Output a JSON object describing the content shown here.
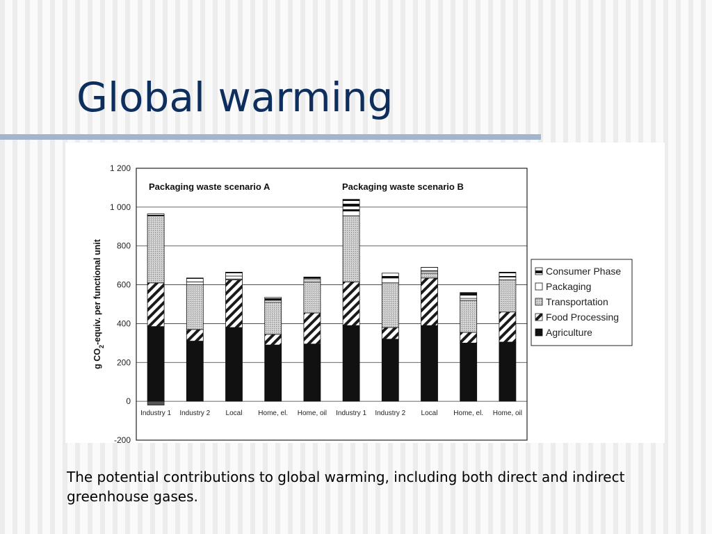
{
  "slide": {
    "title": "Global warming",
    "caption": "The potential contributions to global warming, including both direct and indirect greenhouse gases."
  },
  "chart_data": {
    "type": "bar",
    "stacked": true,
    "ylabel": "g CO2-equiv. per functional unit",
    "ylabel_parts": [
      "g CO",
      "2",
      "-equiv. per functional unit"
    ],
    "ylim": [
      -200,
      1200
    ],
    "yticks": [
      -200,
      0,
      200,
      400,
      600,
      800,
      1000,
      1200
    ],
    "ytick_labels": [
      "-200",
      "0",
      "200",
      "400",
      "600",
      "800",
      "1 000",
      "1 200"
    ],
    "grid": true,
    "legend_position": "right",
    "groups": [
      {
        "label": "Packaging waste scenario A",
        "categories": [
          0,
          1,
          2,
          3,
          4
        ]
      },
      {
        "label": "Packaging waste scenario B",
        "categories": [
          5,
          6,
          7,
          8,
          9
        ]
      }
    ],
    "categories": [
      "Industry 1",
      "Industry 2",
      "Local",
      "Home, el.",
      "Home, oil",
      "Industry 1",
      "Industry 2",
      "Local",
      "Home, el.",
      "Home, oil"
    ],
    "series": [
      {
        "name": "Agriculture",
        "pattern": "solid-black",
        "values": [
          385,
          310,
          380,
          290,
          295,
          390,
          320,
          390,
          300,
          305
        ]
      },
      {
        "name": "Food Processing",
        "pattern": "diagonal-hatch",
        "values": [
          225,
          60,
          245,
          55,
          160,
          225,
          60,
          245,
          55,
          155
        ]
      },
      {
        "name": "Transportation",
        "pattern": "dotted-gray",
        "values": [
          345,
          230,
          5,
          165,
          160,
          340,
          230,
          25,
          165,
          165
        ]
      },
      {
        "name": "Packaging",
        "pattern": "white-bar",
        "values": [
          3,
          15,
          15,
          10,
          10,
          25,
          25,
          10,
          10,
          15
        ]
      },
      {
        "name": "Consumer Phase",
        "pattern": "half-black",
        "values": [
          7,
          20,
          20,
          15,
          15,
          60,
          25,
          20,
          30,
          25
        ]
      }
    ],
    "negative_values": [
      -20,
      0,
      0,
      0,
      0,
      0,
      0,
      0,
      0,
      0
    ],
    "colors": {
      "agriculture": "#111111",
      "transportation": "#c2c2c2",
      "frame": "#222222",
      "grid": "#333333"
    }
  }
}
